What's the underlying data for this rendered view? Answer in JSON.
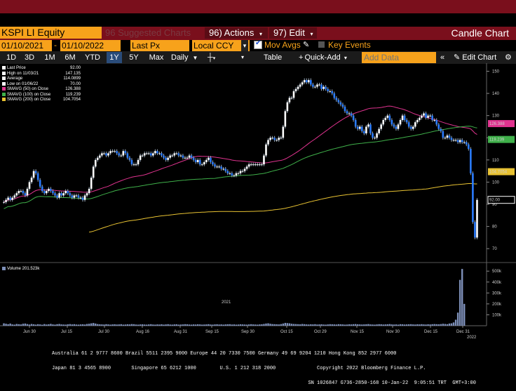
{
  "header": {
    "ticker": "KSPI LI Equity",
    "suggested": "96 Suggested Charts",
    "actions": "96) Actions",
    "edit": "97) Edit",
    "title": "Candle Chart"
  },
  "controls": {
    "date_from": "01/10/2021",
    "date_to": "01/10/2022",
    "field": "Last Px",
    "currency": "Local CCY",
    "mov_avgs": "Mov Avgs",
    "key_events": "Key Events"
  },
  "toolbar": {
    "ranges": [
      "1D",
      "3D",
      "1M",
      "6M",
      "YTD",
      "1Y",
      "5Y",
      "Max"
    ],
    "selected_range": "1Y",
    "period": "Daily",
    "table": "Table",
    "quick_add": "Quick-Add",
    "add_data_placeholder": "Add Data",
    "edit_chart": "Edit Chart"
  },
  "legend": {
    "items": [
      {
        "label": "Last Price",
        "value": "92.00",
        "color": "#ffffff"
      },
      {
        "label": "High on 11/03/21",
        "value": "147.135",
        "color": "#ffffff"
      },
      {
        "label": "Average",
        "value": "114.0899",
        "color": "#ffffff"
      },
      {
        "label": "Low on 01/06/22",
        "value": "70.00",
        "color": "#ffffff"
      },
      {
        "label": "SMAVG (50) on Close",
        "value": "126.388",
        "color": "#e0338f"
      },
      {
        "label": "SMAVG (100) on Close",
        "value": "119.239",
        "color": "#3fb04a"
      },
      {
        "label": "SMAVG (200) on Close",
        "value": "104.7054",
        "color": "#e8c232"
      }
    ]
  },
  "volume_legend": "Volume 201.523k",
  "footer": {
    "line1": "Australia 61 2 9777 8600 Brazil 5511 2395 9000 Europe 44 20 7330 7500 Germany 49 69 9204 1210 Hong Kong 852 2977 6000",
    "line2": "Japan 81 3 4565 8900       Singapore 65 6212 1000        U.S. 1 212 318 2000              Copyright 2022 Bloomberg Finance L.P.",
    "line3": "                                                                                       SN 1026847 G736-2850-168 10-Jan-22  9:05:51 TRT  GMT+3:00"
  },
  "chart_data": {
    "type": "candlestick",
    "y_axis": {
      "ticks": [
        70,
        80,
        90,
        100,
        110,
        120,
        130,
        140,
        150
      ],
      "range": [
        65,
        153
      ]
    },
    "x_axis": {
      "labels": [
        "Jun 30",
        "Jul 15",
        "Jul 30",
        "Aug 16",
        "Aug 31",
        "Sep 15",
        "Sep 30",
        "Oct 15",
        "Oct 29",
        "Nov 15",
        "Nov 30",
        "Dec 15",
        "Dec 31"
      ],
      "year_labels": [
        "2021",
        "2022"
      ]
    },
    "price_tags": [
      {
        "label": "126.388",
        "value": 126.388,
        "color": "#e0338f"
      },
      {
        "label": "119.239",
        "value": 119.239,
        "color": "#3fb04a"
      },
      {
        "label": "104.7054",
        "value": 104.7054,
        "color": "#e8c232"
      },
      {
        "label": "92.00",
        "value": 92.0,
        "color": "#ffffff"
      }
    ],
    "closes": [
      91,
      92,
      93,
      92,
      93,
      94,
      95,
      96,
      96,
      95,
      94,
      97,
      100,
      102,
      105,
      104,
      101,
      98,
      96,
      95,
      96,
      97,
      96,
      95,
      94,
      93,
      95,
      94,
      95,
      96,
      95,
      94,
      93,
      94,
      94,
      93,
      93,
      92,
      94,
      95,
      97,
      102,
      107,
      110,
      111,
      112,
      113,
      113,
      112,
      113,
      114,
      114,
      114,
      113,
      112,
      112,
      114,
      113,
      111,
      110,
      108,
      108,
      108,
      110,
      112,
      112,
      113,
      113,
      113,
      112,
      113,
      114,
      113,
      113,
      112,
      111,
      110,
      111,
      112,
      112,
      113,
      113,
      112,
      112,
      111,
      111,
      111,
      112,
      111,
      110,
      109,
      110,
      108,
      108,
      109,
      110,
      111,
      109,
      108,
      107,
      107,
      107,
      106,
      106,
      105,
      104,
      104,
      103,
      103,
      104,
      104,
      105,
      105,
      106,
      107,
      108,
      108,
      108,
      108,
      108,
      108,
      108,
      112,
      117,
      119,
      120,
      120,
      119,
      119,
      120,
      120,
      125,
      132,
      136,
      138,
      138,
      141,
      142,
      143,
      144,
      145,
      146,
      145,
      146,
      144,
      143,
      143,
      144,
      144,
      142,
      143,
      142,
      141,
      141,
      140,
      138,
      137,
      136,
      135,
      134,
      132,
      131,
      131,
      130,
      128,
      125,
      124,
      125,
      123,
      122,
      125,
      126,
      122,
      120,
      120,
      122,
      124,
      126,
      128,
      129,
      130,
      128,
      126,
      125,
      124,
      126,
      128,
      130,
      128,
      127,
      125,
      124,
      125,
      127,
      128,
      129,
      130,
      131,
      129,
      130,
      130,
      128,
      128,
      126,
      124,
      123,
      120,
      120,
      121,
      120,
      119,
      119,
      119,
      118,
      119,
      118,
      118,
      117,
      115,
      104,
      82,
      75,
      92
    ],
    "volume_k": [
      22,
      18,
      14,
      20,
      12,
      10,
      16,
      14,
      12,
      18,
      20,
      15,
      11,
      16,
      13,
      10,
      14,
      12,
      9,
      15,
      11,
      13,
      17,
      12,
      10,
      14,
      16,
      12,
      11,
      10,
      13,
      15,
      12,
      14,
      11,
      10,
      12,
      13,
      11,
      16,
      18,
      22,
      25,
      20,
      15,
      13,
      12,
      11,
      14,
      12,
      10,
      12,
      13,
      11,
      12,
      14,
      10,
      11,
      13,
      12,
      15,
      14,
      11,
      10,
      12,
      13,
      11,
      10,
      12,
      14,
      11,
      10,
      12,
      11,
      13,
      10,
      12,
      14,
      11,
      10,
      12,
      13,
      10,
      11,
      12,
      14,
      13,
      11,
      10,
      12,
      11,
      13,
      12,
      10,
      11,
      12,
      14,
      11,
      10,
      12,
      13,
      11,
      12,
      10,
      12,
      13,
      14,
      11,
      12,
      10,
      11,
      13,
      12,
      11,
      10,
      12,
      14,
      12,
      11,
      10,
      12,
      13,
      16,
      20,
      22,
      18,
      15,
      14,
      13,
      12,
      15,
      20,
      26,
      24,
      22,
      18,
      16,
      15,
      14,
      13,
      16,
      14,
      12,
      11,
      13,
      12,
      14,
      11,
      12,
      13,
      11,
      10,
      12,
      14,
      13,
      12,
      11,
      14,
      13,
      12,
      10,
      11,
      13,
      12,
      14,
      15,
      13,
      12,
      11,
      12,
      13,
      15,
      12,
      11,
      10,
      12,
      14,
      13,
      11,
      12,
      13,
      15,
      12,
      11,
      12,
      10,
      14,
      13,
      11,
      12,
      13,
      14,
      12,
      11,
      13,
      12,
      14,
      12,
      11,
      13,
      12,
      14,
      15,
      14,
      13,
      15,
      18,
      16,
      14,
      20,
      22,
      30,
      55,
      120,
      420,
      520,
      200
    ]
  }
}
